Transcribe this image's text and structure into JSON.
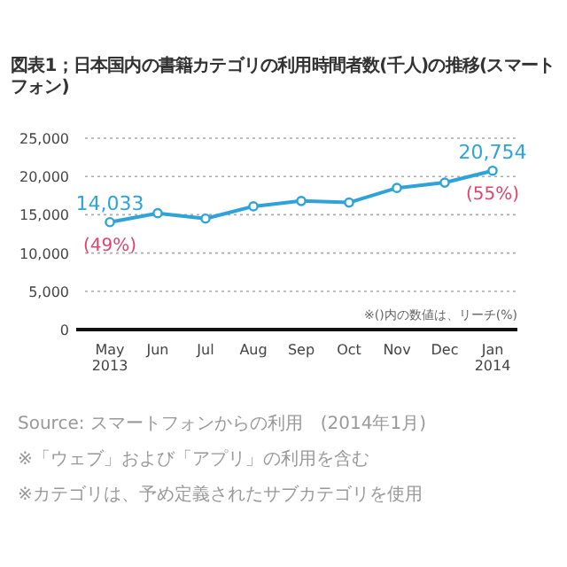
{
  "chart_data": {
    "type": "line",
    "title": "図表1；日本国内の書籍カテゴリの利用時間者数(千人)の推移(スマートフォン)",
    "categories": [
      "May\n2013",
      "Jun",
      "Jul",
      "Aug",
      "Sep",
      "Oct",
      "Nov",
      "Dec",
      "Jan\n2014"
    ],
    "series": [
      {
        "color": "#2ea3da",
        "values": [
          14033,
          15200,
          14500,
          16100,
          16800,
          16600,
          18500,
          19200,
          20754
        ],
        "value_labels": [
          "14,033",
          null,
          null,
          null,
          null,
          null,
          null,
          null,
          "20,754"
        ]
      }
    ],
    "ylim": [
      0,
      25000
    ],
    "yticks": [
      {
        "value": 0,
        "label": "0"
      },
      {
        "value": 5000,
        "label": "5,000"
      },
      {
        "value": 10000,
        "label": "10,000"
      },
      {
        "value": 15000,
        "label": "15,000"
      },
      {
        "value": 20000,
        "label": "20,000"
      },
      {
        "value": 25000,
        "label": "25,000"
      }
    ],
    "grid": "y",
    "marker": "circle",
    "line_style": "solid",
    "annotations": [
      {
        "text": "(49%)",
        "x": "May\n2013",
        "y": 14033
      },
      {
        "text": "(55%)",
        "x": "Jan\n2014",
        "y": 20754
      },
      "※()内の数値は、リーチ(%)",
      "Source: スマートフォンからの利用　(2014年1月)",
      "※「ウェブ」および「アプリ」の利用を含む",
      "※カテゴリは、予め定義されたサブカテゴリを使用"
    ]
  }
}
